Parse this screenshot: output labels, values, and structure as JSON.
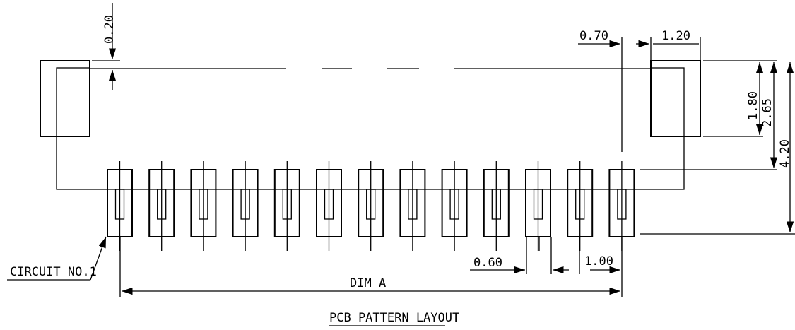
{
  "drawing": {
    "title": "PCB PATTERN LAYOUT",
    "pin_count": 13,
    "labels": {
      "circuit": "CIRCUIT NO.1",
      "dim_a": "DIM A"
    },
    "dimensions": {
      "top_gap": "0.20",
      "pad_gap": "0.70",
      "pad_width": "1.20",
      "pad_height": "1.80",
      "overall_small": "2.65",
      "overall_large": "4.20",
      "pin_width": "0.60",
      "pin_pitch": "1.00"
    }
  }
}
